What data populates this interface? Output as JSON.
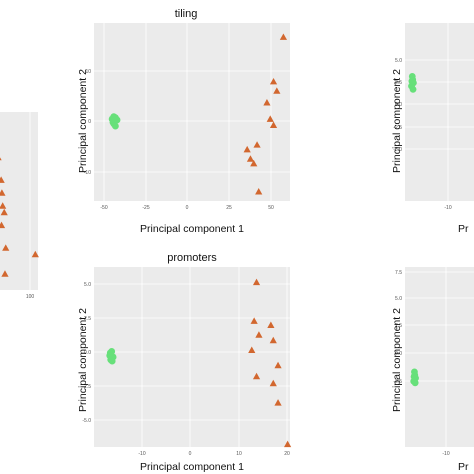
{
  "chart_data": [
    {
      "type": "scatter",
      "title": "",
      "xlabel": "",
      "ylabel": "",
      "xlim": [
        -20,
        105
      ],
      "ylim": [
        -25,
        30
      ],
      "x_ticks": [
        "100"
      ],
      "y_ticks": [],
      "series": [
        {
          "marker": "triangle",
          "color": "#d2672f",
          "x": [
            -10,
            1,
            9,
            11,
            13,
            10,
            17,
            21,
            19,
            98
          ],
          "y": [
            23,
            16,
            9,
            5,
            1,
            -5,
            -1,
            -12,
            -20,
            -14
          ]
        }
      ]
    },
    {
      "type": "scatter",
      "title": "tiling",
      "xlabel": "Principal component 1",
      "ylabel": "Principal component 2",
      "xlim": [
        -58,
        61
      ],
      "ylim": [
        -17,
        21
      ],
      "x_ticks": [
        "-50",
        "-25",
        "0",
        "25",
        "50"
      ],
      "y_ticks": [
        "10",
        "0",
        "-10"
      ],
      "series": [
        {
          "marker": "circle",
          "color": "#67e07a",
          "x": [
            -47,
            -46,
            -45.5,
            -46,
            -45,
            -46.5,
            -45,
            -44
          ],
          "y": [
            0.5,
            1,
            0,
            -0.5,
            0.8,
            -0.2,
            -1,
            0.3
          ]
        },
        {
          "marker": "triangle",
          "color": "#d2672f",
          "x": [
            57,
            51,
            53,
            47,
            49,
            51,
            35,
            41,
            39,
            37,
            42
          ],
          "y": [
            18,
            8.5,
            6.5,
            4,
            0.5,
            -0.8,
            -6,
            -5,
            -9,
            -8,
            -15
          ]
        }
      ]
    },
    {
      "type": "scatter",
      "title": "",
      "xlabel": "",
      "ylabel": "Principal component 2",
      "xlim": [
        -13,
        5
      ],
      "ylim": [
        -4.5,
        6.5
      ],
      "x_ticks": [
        "-10"
      ],
      "y_ticks": [
        "5.0",
        "2.5",
        "0.0",
        "-2.5",
        "-5.0"
      ],
      "series": [
        {
          "marker": "circle",
          "color": "#67e07a",
          "x": [
            -11.3,
            -11,
            -10.8,
            -11.1,
            -10.9,
            -11.2
          ],
          "y": [
            2.6,
            3.0,
            2.8,
            3.2,
            2.4,
            2.9
          ]
        }
      ]
    },
    {
      "type": "scatter",
      "title": "promoters",
      "xlabel": "Principal component 1",
      "ylabel": "Principal component 2",
      "xlim": [
        -20,
        21
      ],
      "ylim": [
        -6.5,
        6.5
      ],
      "x_ticks": [
        "-10",
        "0",
        "10",
        "20"
      ],
      "y_ticks": [
        "5.0",
        "2.5",
        "0.0",
        "-2.5",
        "-5.0"
      ],
      "series": [
        {
          "marker": "circle",
          "color": "#67e07a",
          "x": [
            -16.7,
            -16.3,
            -16.5,
            -16.0,
            -16.6,
            -16.2
          ],
          "y": [
            0.1,
            0.4,
            -0.2,
            0.0,
            0.3,
            -0.3
          ]
        },
        {
          "marker": "triangle",
          "color": "#d2672f",
          "x": [
            14,
            13.5,
            17,
            14.5,
            17.5,
            13,
            18.5,
            14,
            17.5,
            18.5,
            20.5
          ],
          "y": [
            5.4,
            2.6,
            2.3,
            1.6,
            1.2,
            0.5,
            -0.6,
            -1.4,
            -1.9,
            -3.3,
            -6.3
          ]
        }
      ]
    },
    {
      "type": "scatter",
      "title": "",
      "xlabel": "",
      "ylabel": "Principal component 2",
      "xlim": [
        -14,
        5
      ],
      "ylim": [
        -4.5,
        7
      ],
      "x_ticks": [
        "-10"
      ],
      "y_ticks": [
        "7.5",
        "5.0",
        "2.5",
        "0.0",
        "-2.5"
      ],
      "series": [
        {
          "marker": "circle",
          "color": "#67e07a",
          "x": [
            -11.6,
            -11.3,
            -11.1,
            -11.4,
            -11.2,
            -11.5
          ],
          "y": [
            -0.3,
            0.1,
            -0.1,
            0.3,
            -0.4,
            0.0
          ]
        }
      ]
    }
  ],
  "partial_labels": {
    "right_top_xlabel": "Pr",
    "right_bottom_xlabel": "Pr"
  }
}
